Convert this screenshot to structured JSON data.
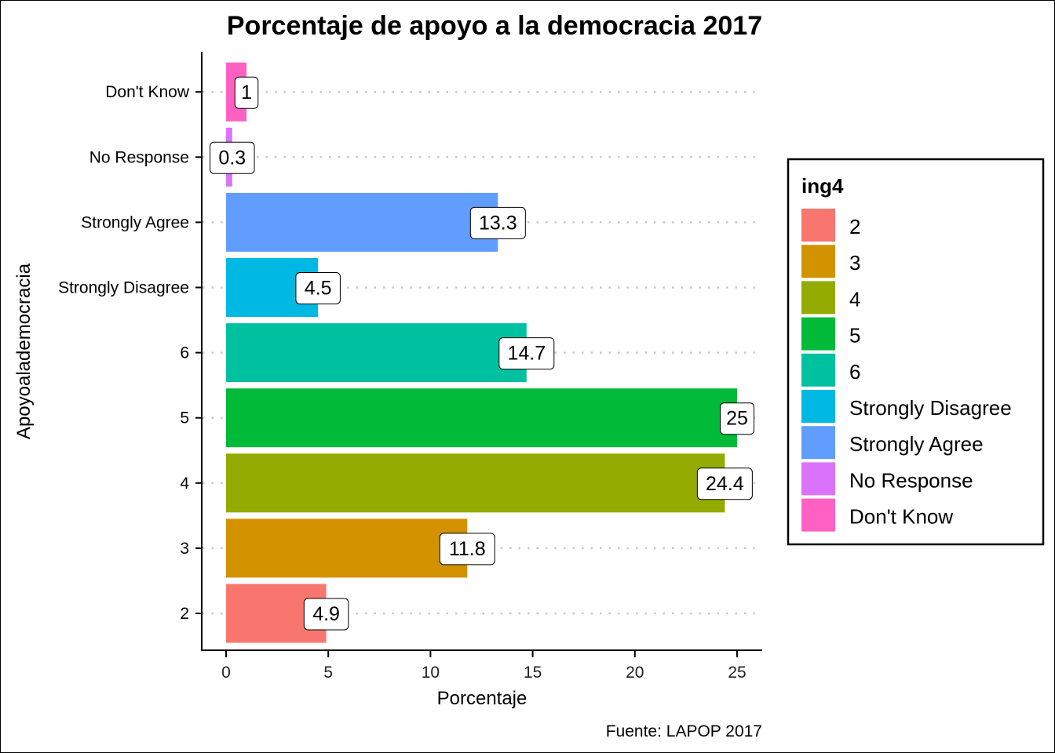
{
  "chart_data": {
    "type": "bar",
    "orientation": "horizontal",
    "title": "Porcentaje de apoyo a la democracia 2017",
    "xlabel": "Porcentaje",
    "ylabel": "Apoyoalademocracia",
    "caption": "Fuente: LAPOP 2017",
    "xlim": [
      0,
      26
    ],
    "xticks": [
      0,
      5,
      10,
      15,
      20,
      25
    ],
    "grid": "dotted horizontal lines at each category",
    "categories": [
      "2",
      "3",
      "4",
      "5",
      "6",
      "Strongly Disagree",
      "Strongly Agree",
      "No Response",
      "Don't Know"
    ],
    "values": [
      4.9,
      11.8,
      24.4,
      25,
      14.7,
      4.5,
      13.3,
      0.3,
      1
    ],
    "value_labels": [
      "4.9",
      "11.8",
      "24.4",
      "25",
      "14.7",
      "4.5",
      "13.3",
      "0.3",
      "1"
    ],
    "colors": [
      "#F8766D",
      "#D39200",
      "#93AA00",
      "#00BA38",
      "#00C19F",
      "#00B9E3",
      "#619CFF",
      "#DB72FB",
      "#FF61C3"
    ],
    "legend": {
      "title": "ing4",
      "position": "right",
      "entries": [
        "2",
        "3",
        "4",
        "5",
        "6",
        "Strongly Disagree",
        "Strongly Agree",
        "No Response",
        "Don't Know"
      ]
    }
  }
}
